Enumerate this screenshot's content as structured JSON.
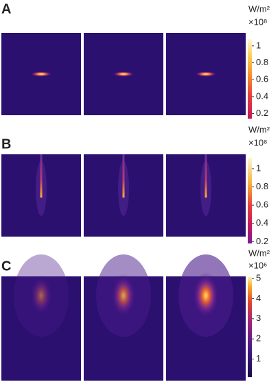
{
  "panels": [
    {
      "label": "A",
      "unit": "W/m²",
      "multiplier": "×10⁸",
      "colorbar": {
        "lim": [
          0.14,
          1.08
        ],
        "ticks": [
          0.2,
          0.4,
          0.6,
          0.8,
          1
        ]
      }
    },
    {
      "label": "B",
      "unit": "W/m²",
      "multiplier": "×10⁸",
      "colorbar": {
        "lim": [
          0.18,
          1.12
        ],
        "ticks": [
          0.2,
          0.4,
          0.6,
          0.8,
          1
        ]
      }
    },
    {
      "label": "C",
      "unit": "W/m²",
      "multiplier": "×10⁶",
      "colorbar": {
        "lim": [
          0.1,
          5.07
        ],
        "ticks": [
          1,
          2,
          3,
          4,
          5
        ]
      }
    }
  ]
}
